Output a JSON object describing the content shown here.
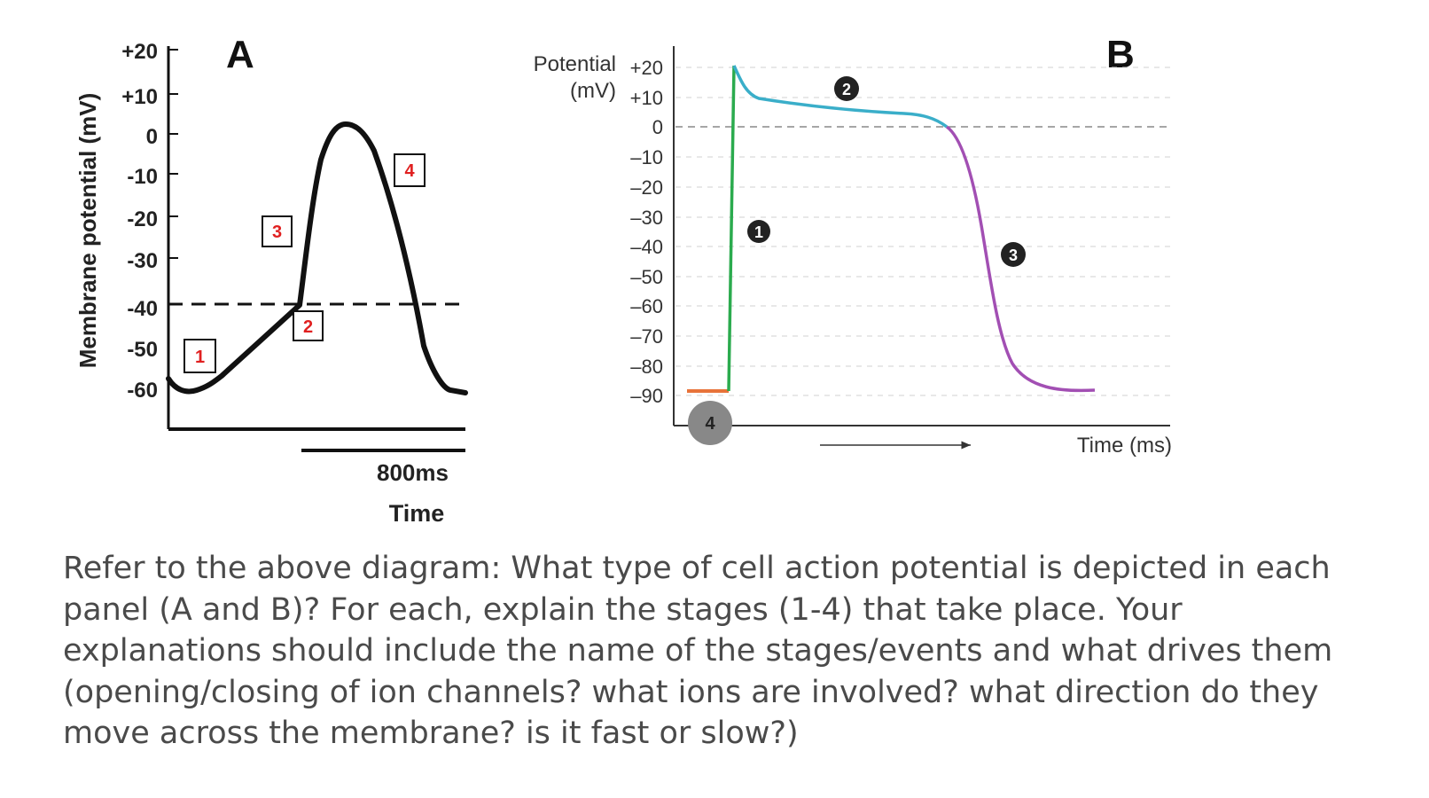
{
  "panel_a": {
    "letter": "A",
    "ylabel": "Membrane potential (mV)",
    "y_ticks": [
      "+20",
      "+10",
      "0",
      "-10",
      "-20",
      "-30",
      "-40",
      "-50",
      "-60"
    ],
    "scale_bar_label": "800ms",
    "xlabel": "Time",
    "stage_labels": [
      "1",
      "2",
      "3",
      "4"
    ],
    "threshold_mV": -40
  },
  "panel_b": {
    "letter": "B",
    "ylabel_line1": "Potential",
    "ylabel_line2": "(mV)",
    "y_ticks": [
      "+20",
      "+10",
      "0",
      "–10",
      "–20",
      "–30",
      "–40",
      "–50",
      "–60",
      "–70",
      "–80",
      "–90"
    ],
    "xlabel": "Time (ms)",
    "stage_labels": [
      "1",
      "2",
      "3",
      "4"
    ],
    "colors": {
      "phase4": "#e8733a",
      "phase0": "#2bab4e",
      "phase2": "#3aaec9",
      "phase3": "#a24fb3"
    }
  },
  "colors": {
    "stage_box": "#e02020",
    "question_text": "#4a4a4a"
  },
  "question": "Refer to the above diagram: What type of cell action potential is depicted in each panel (A and B)? For each, explain the stages (1-4) that take place. Your explanations should include the name of the stages/events and what drives them (opening/closing of ion channels? what ions are involved? what direction do they move across the membrane? is it fast or slow?)"
}
